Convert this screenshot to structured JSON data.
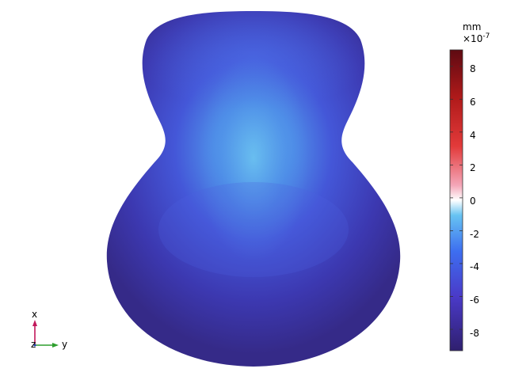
{
  "colorbar": {
    "unit": "mm",
    "exponent_base": "×10",
    "exponent_power": "-7",
    "ticks": [
      "8",
      "6",
      "4",
      "2",
      "0",
      "-2",
      "-4",
      "-6",
      "-8"
    ],
    "range": [
      -9.3,
      9.0
    ],
    "colormap": "Wave"
  },
  "triad": {
    "x_label": "x",
    "y_label": "y",
    "z_label": "z",
    "x_color": "#c2185b",
    "y_color": "#2e9e2e"
  },
  "surface": {
    "color_min": "#3a2b8c",
    "color_max": "#63b6ee"
  }
}
